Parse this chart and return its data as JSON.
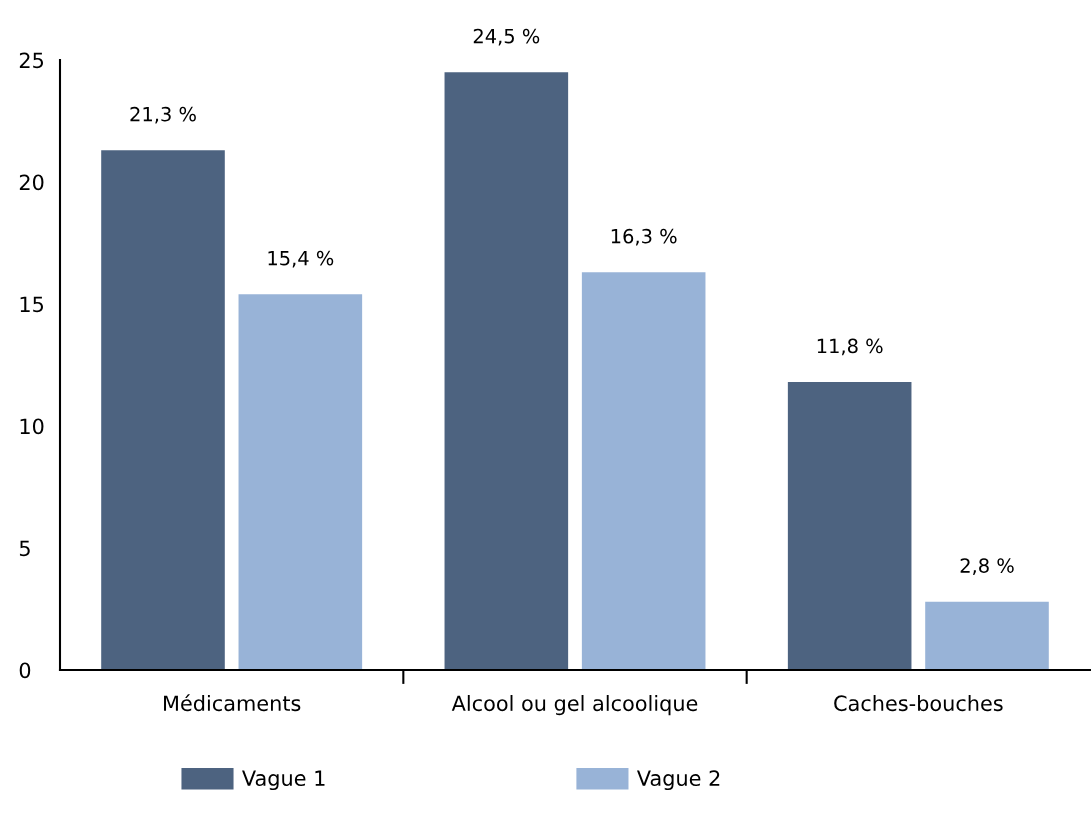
{
  "chart_data": {
    "type": "bar",
    "categories": [
      "Médicaments",
      "Alcool ou gel alcoolique",
      "Caches-bouches"
    ],
    "series": [
      {
        "name": "Vague 1",
        "color": "#4d6380",
        "values": [
          21.3,
          24.5,
          11.8
        ],
        "value_labels": [
          "21,3 %",
          "24,5 %",
          "11,8 %"
        ]
      },
      {
        "name": "Vague 2",
        "color": "#98b3d7",
        "values": [
          15.4,
          16.3,
          2.8
        ],
        "value_labels": [
          "15,4 %",
          "16,3 %",
          "2,8 %"
        ]
      }
    ],
    "ylim": [
      0,
      25
    ],
    "yticks": [
      0,
      5,
      10,
      15,
      20,
      25
    ],
    "grid": false,
    "legend": "bottom"
  }
}
